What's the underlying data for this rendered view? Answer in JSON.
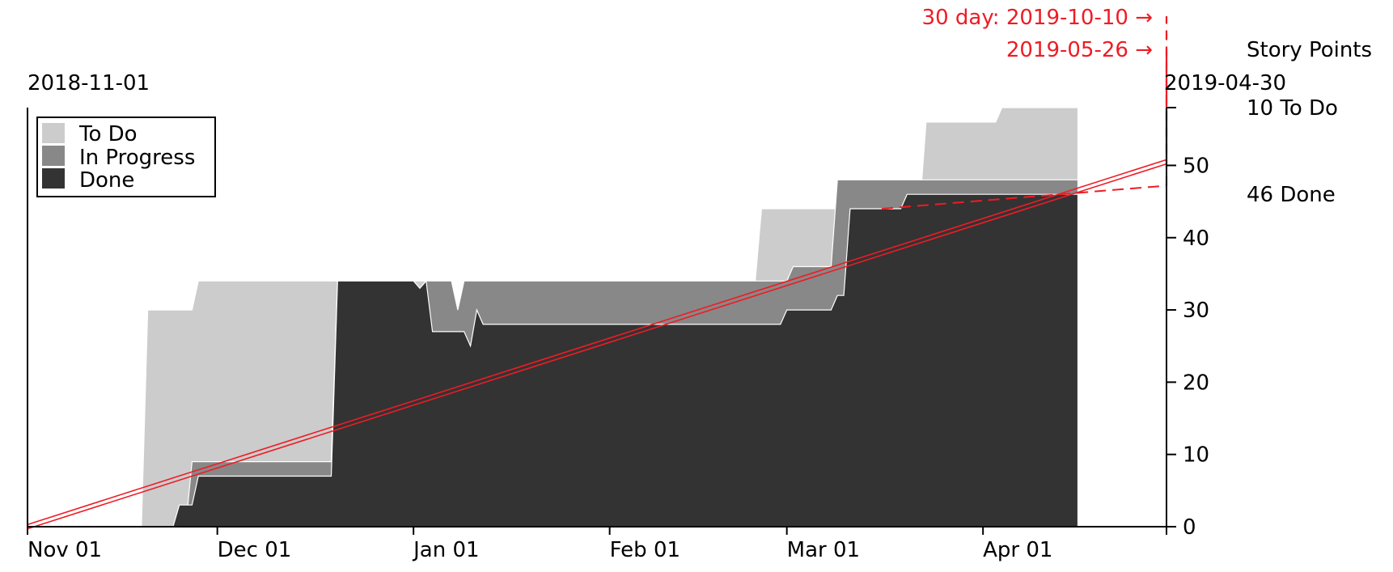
{
  "chart_data": {
    "type": "area",
    "title": "",
    "xlabel": "",
    "ylabel": "Story Points",
    "x_range": [
      "2018-11-01",
      "2019-04-30"
    ],
    "ylim": [
      0,
      58
    ],
    "grid": false,
    "legend_position": "top-left",
    "x_tick_labels": [
      "Nov 01",
      "Dec 01",
      "Jan 01",
      "Feb 01",
      "Mar 01",
      "Apr 01"
    ],
    "x_tick_dates": [
      "2018-11-01",
      "2018-12-01",
      "2019-01-01",
      "2019-02-01",
      "2019-03-01",
      "2019-04-01"
    ],
    "y_ticks": [
      0,
      10,
      20,
      30,
      40,
      50
    ],
    "start_label": "2018-11-01",
    "end_label": "2019-04-30",
    "series": [
      {
        "name": "To Do",
        "color": "#cccccc",
        "values": [
          [
            "2018-11-19",
            0
          ],
          [
            "2018-11-20",
            30
          ],
          [
            "2018-11-27",
            30
          ],
          [
            "2018-11-28",
            34
          ],
          [
            "2018-12-19",
            34
          ],
          [
            "2019-01-07",
            34
          ],
          [
            "2019-01-08",
            30
          ],
          [
            "2019-01-09",
            34
          ],
          [
            "2019-02-24",
            34
          ],
          [
            "2019-02-25",
            44
          ],
          [
            "2019-03-22",
            44
          ],
          [
            "2019-03-23",
            56
          ],
          [
            "2019-04-03",
            56
          ],
          [
            "2019-04-04",
            58
          ],
          [
            "2019-04-16",
            58
          ]
        ]
      },
      {
        "name": "In Progress",
        "color": "#888888",
        "values": [
          [
            "2018-11-26",
            0
          ],
          [
            "2018-11-27",
            9
          ],
          [
            "2018-12-19",
            9
          ],
          [
            "2018-12-20",
            34
          ],
          [
            "2019-01-01",
            34
          ],
          [
            "2019-01-02",
            33
          ],
          [
            "2019-01-03",
            34
          ],
          [
            "2019-01-07",
            34
          ],
          [
            "2019-01-08",
            30
          ],
          [
            "2019-01-09",
            34
          ],
          [
            "2019-03-01",
            34
          ],
          [
            "2019-03-02",
            36
          ],
          [
            "2019-03-08",
            36
          ],
          [
            "2019-03-09",
            48
          ],
          [
            "2019-04-16",
            48
          ]
        ]
      },
      {
        "name": "Done",
        "color": "#333333",
        "values": [
          [
            "2018-11-24",
            0
          ],
          [
            "2018-11-25",
            3
          ],
          [
            "2018-11-27",
            3
          ],
          [
            "2018-11-28",
            7
          ],
          [
            "2018-12-19",
            7
          ],
          [
            "2018-12-20",
            34
          ],
          [
            "2019-01-01",
            34
          ],
          [
            "2019-01-02",
            33
          ],
          [
            "2019-01-03",
            34
          ],
          [
            "2019-01-04",
            27
          ],
          [
            "2019-01-09",
            27
          ],
          [
            "2019-01-10",
            25
          ],
          [
            "2019-01-11",
            30
          ],
          [
            "2019-01-12",
            28
          ],
          [
            "2019-02-28",
            28
          ],
          [
            "2019-03-01",
            30
          ],
          [
            "2019-03-08",
            30
          ],
          [
            "2019-03-09",
            32
          ],
          [
            "2019-03-10",
            32
          ],
          [
            "2019-03-11",
            44
          ],
          [
            "2019-03-19",
            44
          ],
          [
            "2019-03-20",
            46
          ],
          [
            "2019-04-16",
            46
          ]
        ]
      }
    ],
    "trend_lines": [
      {
        "name": "ideal",
        "color": "#ee1c25",
        "style": "double",
        "points": [
          [
            "2018-11-01",
            0
          ],
          [
            "2019-04-30",
            50.5
          ]
        ]
      },
      {
        "name": "30-day",
        "color": "#ee1c25",
        "style": "dashed",
        "points": [
          [
            "2019-03-16",
            44
          ],
          [
            "2019-04-30",
            47.2
          ]
        ]
      }
    ],
    "annotations": [
      {
        "text": "30 day: 2019-10-10 →",
        "color": "#ee1c25"
      },
      {
        "text": "2019-05-26 →",
        "color": "#ee1c25"
      },
      {
        "text": "10 To Do",
        "color": "#000000"
      },
      {
        "text": "46 Done",
        "color": "#000000"
      }
    ]
  }
}
